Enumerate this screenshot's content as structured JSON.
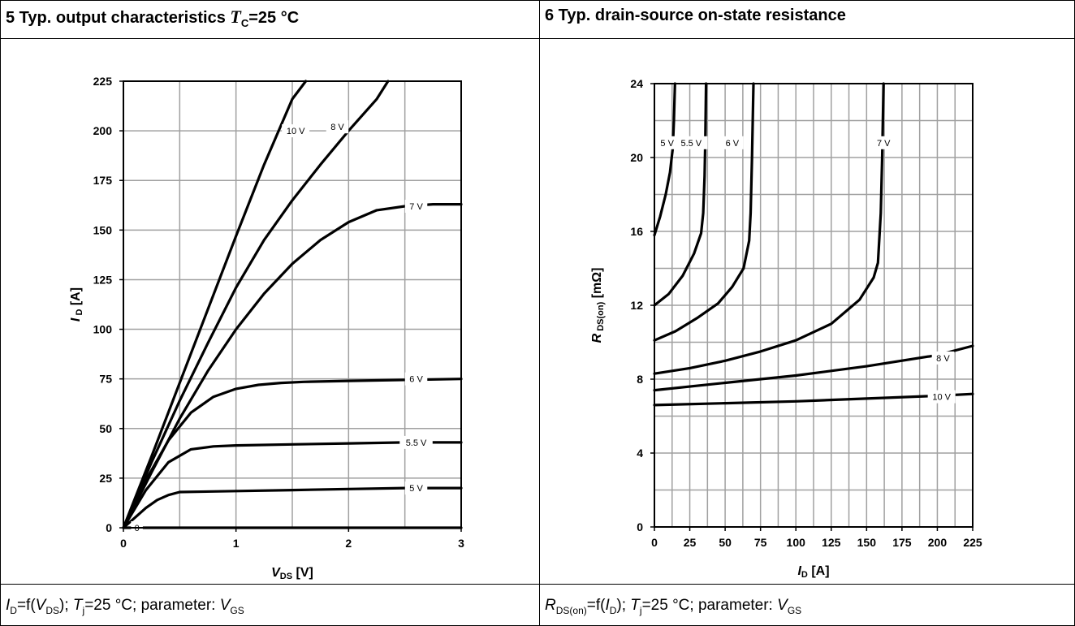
{
  "left": {
    "header": {
      "prefix": "5 Typ. output characteristics ",
      "sym": "T",
      "sub": "C",
      "suffix": "=25 °C"
    },
    "caption": {
      "a": "I",
      "a_sub": "D",
      "b": "=f(",
      "c": "V",
      "c_sub": "DS",
      "d": "); ",
      "e": "T",
      "e_sub": "j",
      "f": "=25 °C; parameter: ",
      "g": "V",
      "g_sub": "GS"
    }
  },
  "right": {
    "header": {
      "text": "6 Typ. drain-source on-state resistance"
    },
    "caption": {
      "a": "R",
      "a_sub": "DS(on)",
      "b": "=f(",
      "c": "I",
      "c_sub": "D",
      "d": "); ",
      "e": "T",
      "e_sub": "j",
      "f": "=25 °C; parameter: ",
      "g": "V",
      "g_sub": "GS"
    }
  },
  "chart_data": [
    {
      "type": "line",
      "xlabel": {
        "main": "V",
        "sub": "DS",
        "unit": " [V]"
      },
      "ylabel": {
        "main": "I",
        "sub": "D",
        "unit": " [A]"
      },
      "xlim": [
        0,
        3
      ],
      "ylim": [
        0,
        225
      ],
      "xticks": [
        0,
        1,
        2,
        3
      ],
      "xtick_labels": [
        "0",
        "1",
        "2",
        "3"
      ],
      "yticks": [
        0,
        25,
        50,
        75,
        100,
        125,
        150,
        175,
        200,
        225
      ],
      "ytick_labels": [
        "0",
        "25",
        "50",
        "75",
        "100",
        "125",
        "150",
        "175",
        "200",
        "225"
      ],
      "grid": true,
      "series": [
        {
          "name": "10 V",
          "label_at": [
            1.53,
            200
          ],
          "x": [
            0,
            0.25,
            0.5,
            0.75,
            1.0,
            1.25,
            1.5,
            1.62
          ],
          "y": [
            0,
            36,
            73,
            110,
            147,
            183,
            216,
            225
          ]
        },
        {
          "name": "8 V",
          "label_at": [
            1.9,
            202
          ],
          "x": [
            0,
            0.25,
            0.5,
            0.75,
            1.0,
            1.25,
            1.5,
            1.75,
            2.0,
            2.25,
            2.35
          ],
          "y": [
            0,
            33,
            64,
            93,
            121,
            145,
            165,
            183,
            200,
            216,
            225
          ]
        },
        {
          "name": "7 V",
          "label_at": [
            2.6,
            162
          ],
          "x": [
            0,
            0.25,
            0.5,
            0.75,
            1.0,
            1.25,
            1.5,
            1.75,
            2.0,
            2.25,
            2.5,
            2.75,
            3.0
          ],
          "y": [
            0,
            28,
            55,
            79,
            100,
            118,
            133,
            145,
            154,
            160,
            162,
            163,
            163
          ]
        },
        {
          "name": "6 V",
          "label_at": [
            2.6,
            75
          ],
          "x": [
            0,
            0.2,
            0.4,
            0.6,
            0.8,
            1.0,
            1.2,
            1.4,
            1.6,
            2.0,
            2.5,
            3.0
          ],
          "y": [
            0,
            24,
            44,
            58,
            66,
            70,
            72,
            73,
            73.5,
            74,
            74.5,
            75
          ]
        },
        {
          "name": "5.5 V",
          "label_at": [
            2.6,
            43
          ],
          "x": [
            0,
            0.2,
            0.4,
            0.6,
            0.8,
            1.0,
            1.5,
            2.0,
            2.5,
            3.0
          ],
          "y": [
            0,
            19,
            33,
            39.5,
            41,
            41.5,
            42,
            42.5,
            43,
            43
          ]
        },
        {
          "name": "5 V",
          "label_at": [
            2.6,
            20
          ],
          "x": [
            0,
            0.1,
            0.2,
            0.3,
            0.4,
            0.5,
            1.0,
            1.5,
            2.0,
            2.5,
            3.0
          ],
          "y": [
            0,
            5,
            10,
            14,
            16.5,
            18,
            18.5,
            19,
            19.5,
            20,
            20
          ]
        },
        {
          "name": "0",
          "label_at": [
            0.12,
            0
          ],
          "x": [
            0,
            3.0
          ],
          "y": [
            0,
            0
          ]
        }
      ]
    },
    {
      "type": "line",
      "xlabel": {
        "main": "I",
        "sub": "D",
        "unit": " [A]"
      },
      "ylabel": {
        "main": "R",
        "sub": "DS(on)",
        "unit": "   [mΩ]"
      },
      "xlim": [
        0,
        225
      ],
      "ylim": [
        0,
        24
      ],
      "xticks": [
        0,
        25,
        50,
        75,
        100,
        125,
        150,
        175,
        200,
        225
      ],
      "xtick_labels": [
        "0",
        "25",
        "50",
        "75",
        "100",
        "125",
        "150",
        "175",
        "200",
        "225"
      ],
      "yticks": [
        0,
        4,
        8,
        12,
        16,
        20,
        24
      ],
      "ytick_labels": [
        "0",
        "4",
        "8",
        "12",
        "16",
        "20",
        "24"
      ],
      "grid": true,
      "series": [
        {
          "name": "5 V",
          "label_at": [
            9,
            20.8
          ],
          "x": [
            0,
            4,
            8,
            11,
            13,
            13.8,
            14.5
          ],
          "y": [
            15.8,
            16.8,
            18.0,
            19.2,
            20.5,
            22,
            24
          ]
        },
        {
          "name": "5.5 V",
          "label_at": [
            26,
            20.8
          ],
          "x": [
            0,
            10,
            20,
            28,
            33,
            34.5,
            35.5,
            36,
            36.5
          ],
          "y": [
            12.0,
            12.6,
            13.6,
            14.8,
            15.9,
            17,
            19,
            21,
            24
          ]
        },
        {
          "name": "6 V",
          "label_at": [
            55,
            20.8
          ],
          "x": [
            0,
            15,
            30,
            45,
            55,
            63,
            67,
            68,
            69,
            70
          ],
          "y": [
            10.1,
            10.6,
            11.3,
            12.1,
            13.0,
            14.0,
            15.5,
            17,
            20,
            24
          ]
        },
        {
          "name": "7 V",
          "label_at": [
            162,
            20.8
          ],
          "x": [
            0,
            25,
            50,
            75,
            100,
            125,
            145,
            155,
            158,
            160,
            161,
            162
          ],
          "y": [
            8.3,
            8.6,
            9.0,
            9.5,
            10.1,
            11.0,
            12.3,
            13.5,
            14.3,
            17,
            20,
            24
          ]
        },
        {
          "name": "8 V",
          "label_at": [
            204,
            9.15
          ],
          "x": [
            0,
            50,
            100,
            150,
            200,
            225
          ],
          "y": [
            7.4,
            7.8,
            8.2,
            8.7,
            9.3,
            9.8
          ]
        },
        {
          "name": "10 V",
          "label_at": [
            203,
            7.05
          ],
          "x": [
            0,
            50,
            100,
            150,
            200,
            225
          ],
          "y": [
            6.6,
            6.7,
            6.8,
            6.95,
            7.1,
            7.2
          ]
        }
      ]
    }
  ]
}
